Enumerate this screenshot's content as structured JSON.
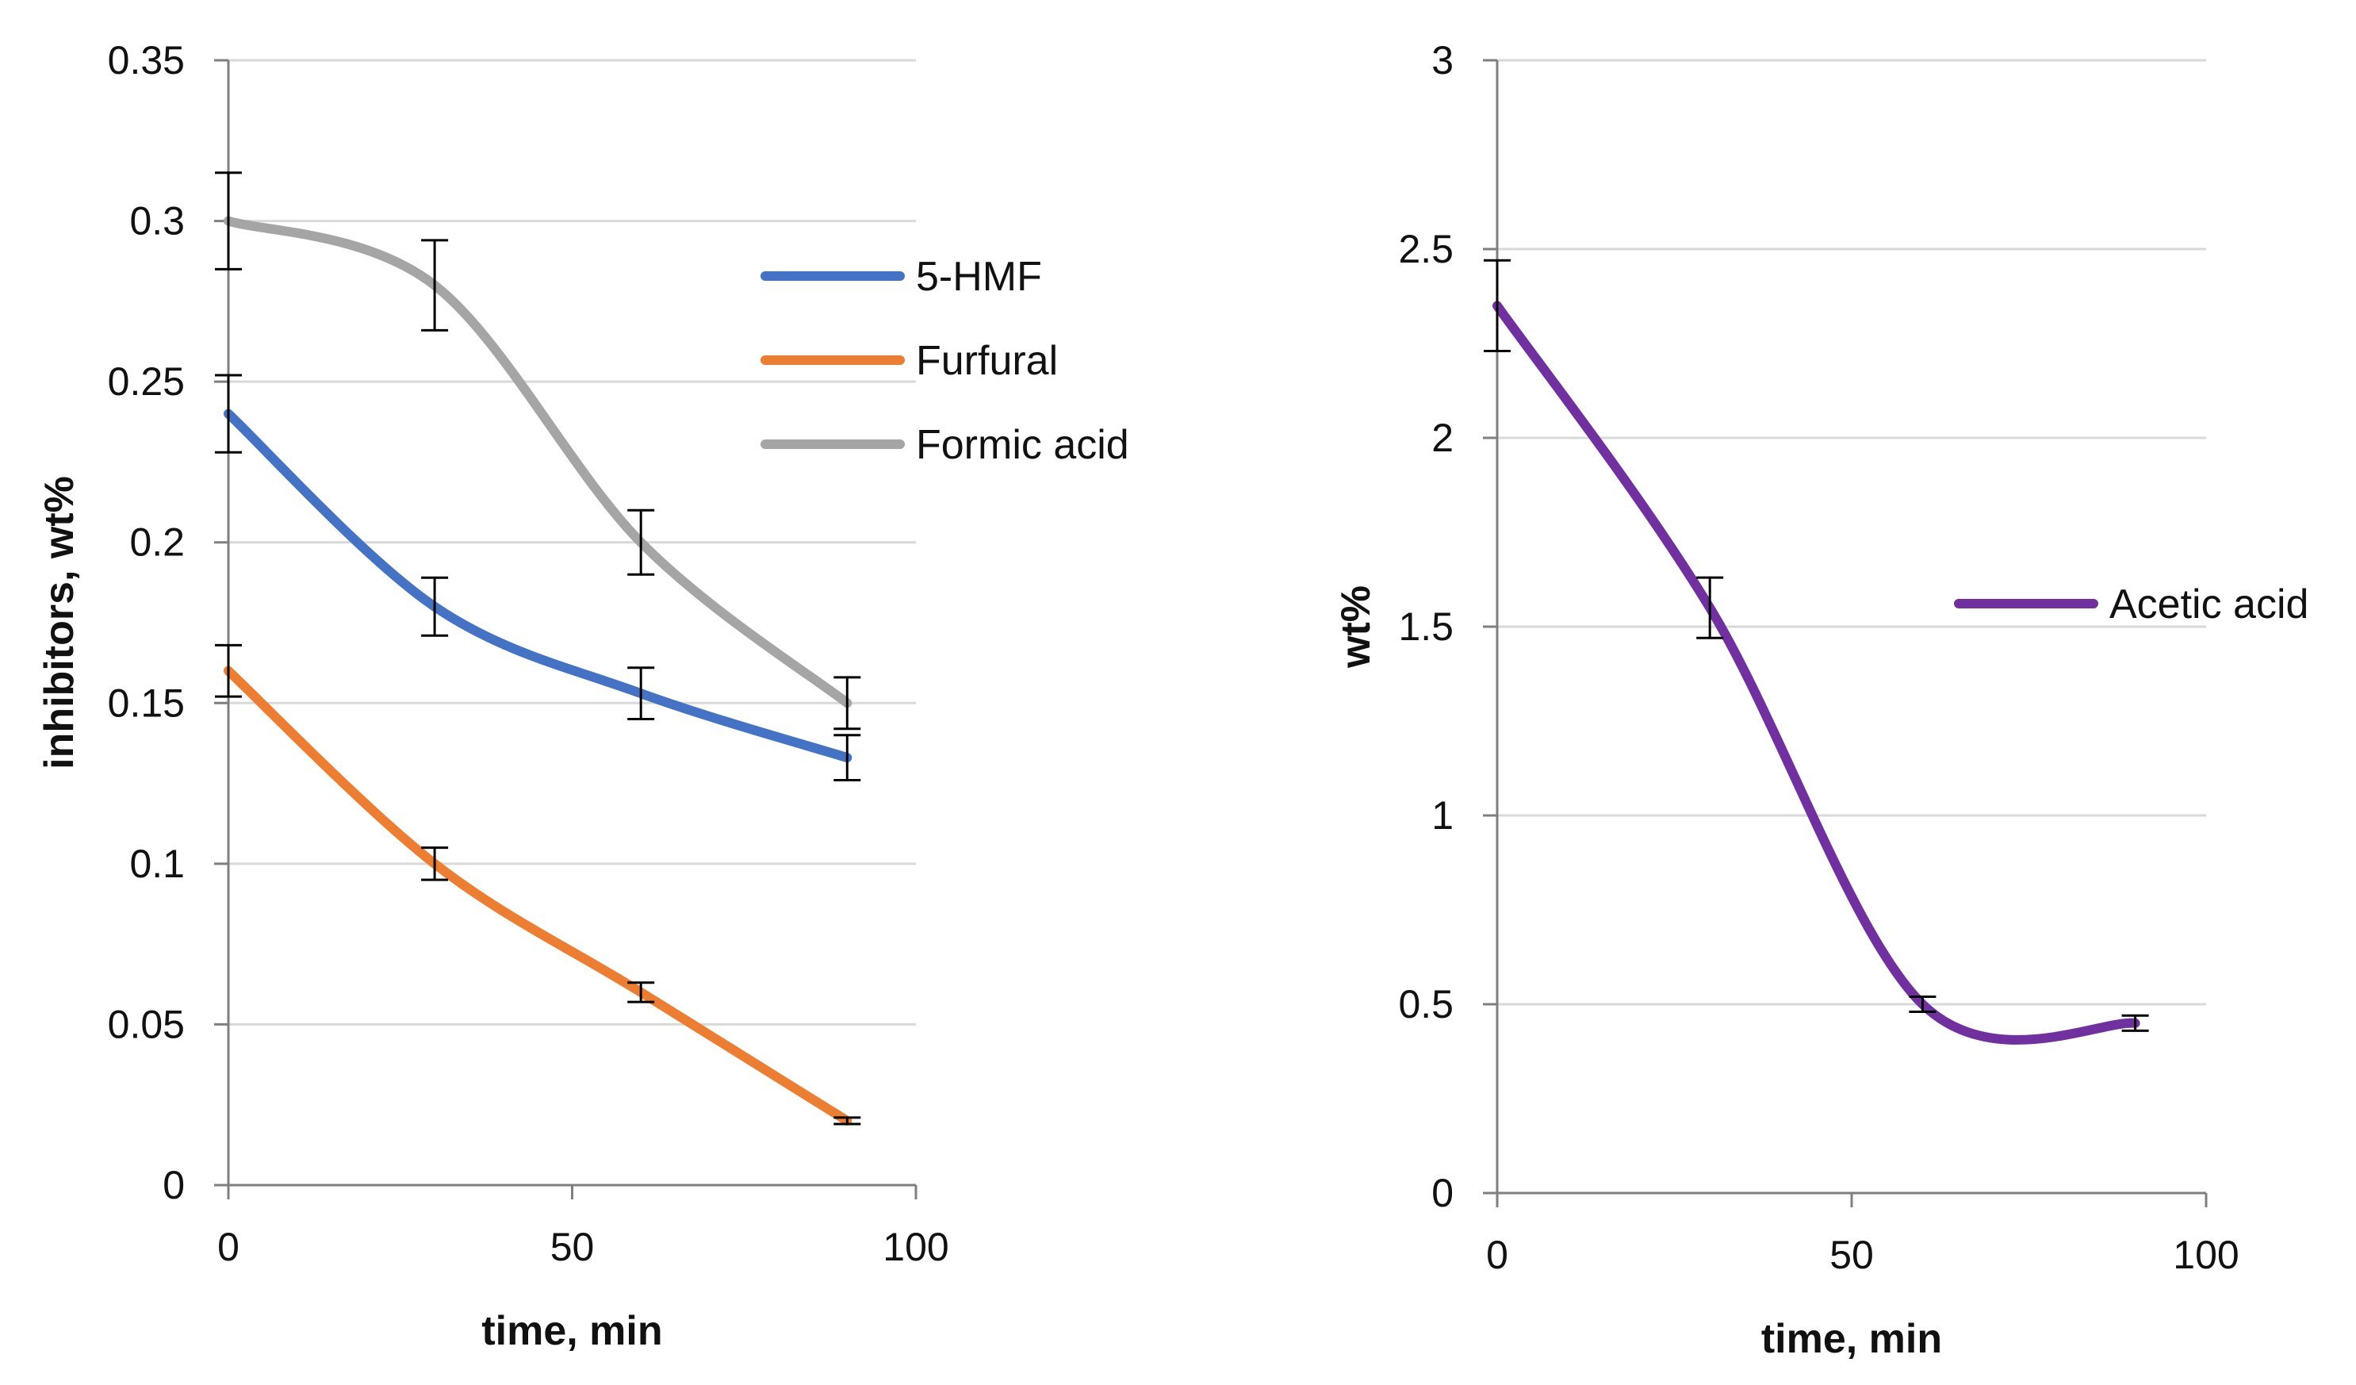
{
  "chart_data": [
    {
      "type": "line",
      "title": "",
      "xlabel": "time, min",
      "ylabel": "inhibitors, wt%",
      "xlim": [
        0,
        100
      ],
      "ylim": [
        0,
        0.35
      ],
      "xticks": [
        0,
        50,
        100
      ],
      "yticks": [
        0,
        0.05,
        0.1,
        0.15,
        0.2,
        0.25,
        0.3,
        0.35
      ],
      "xtick_labels": [
        "0",
        "50",
        "100"
      ],
      "ytick_labels": [
        "0",
        "0.05",
        "0.1",
        "0.15",
        "0.2",
        "0.25",
        "0.3",
        "0.35"
      ],
      "grid": "horizontal",
      "legend_position": "right",
      "x": [
        0,
        30,
        60,
        90
      ],
      "series": [
        {
          "name": "5-HMF",
          "color": "#4472C4",
          "values": [
            0.24,
            0.18,
            0.153,
            0.133
          ],
          "errors": [
            0.012,
            0.009,
            0.008,
            0.007
          ]
        },
        {
          "name": "Furfural",
          "color": "#ED7D31",
          "values": [
            0.16,
            0.1,
            0.06,
            0.02
          ],
          "errors": [
            0.008,
            0.005,
            0.003,
            0.001
          ]
        },
        {
          "name": "Formic acid",
          "color": "#A5A5A5",
          "values": [
            0.3,
            0.28,
            0.2,
            0.15
          ],
          "errors": [
            0.015,
            0.014,
            0.01,
            0.008
          ]
        }
      ]
    },
    {
      "type": "line",
      "title": "",
      "xlabel": "time, min",
      "ylabel": "wt%",
      "xlim": [
        0,
        100
      ],
      "ylim": [
        0,
        3
      ],
      "xticks": [
        0,
        50,
        100
      ],
      "yticks": [
        0,
        0.5,
        1,
        1.5,
        2,
        2.5,
        3
      ],
      "xtick_labels": [
        "0",
        "50",
        "100"
      ],
      "ytick_labels": [
        "0",
        "0.5",
        "1",
        "1.5",
        "2",
        "2.5",
        "3"
      ],
      "grid": "horizontal",
      "legend_position": "right",
      "x": [
        0,
        30,
        60,
        90
      ],
      "series": [
        {
          "name": "Acetic acid",
          "color": "#7030A0",
          "values": [
            2.35,
            1.55,
            0.5,
            0.45
          ],
          "errors": [
            0.12,
            0.08,
            0.02,
            0.02
          ]
        }
      ]
    }
  ]
}
